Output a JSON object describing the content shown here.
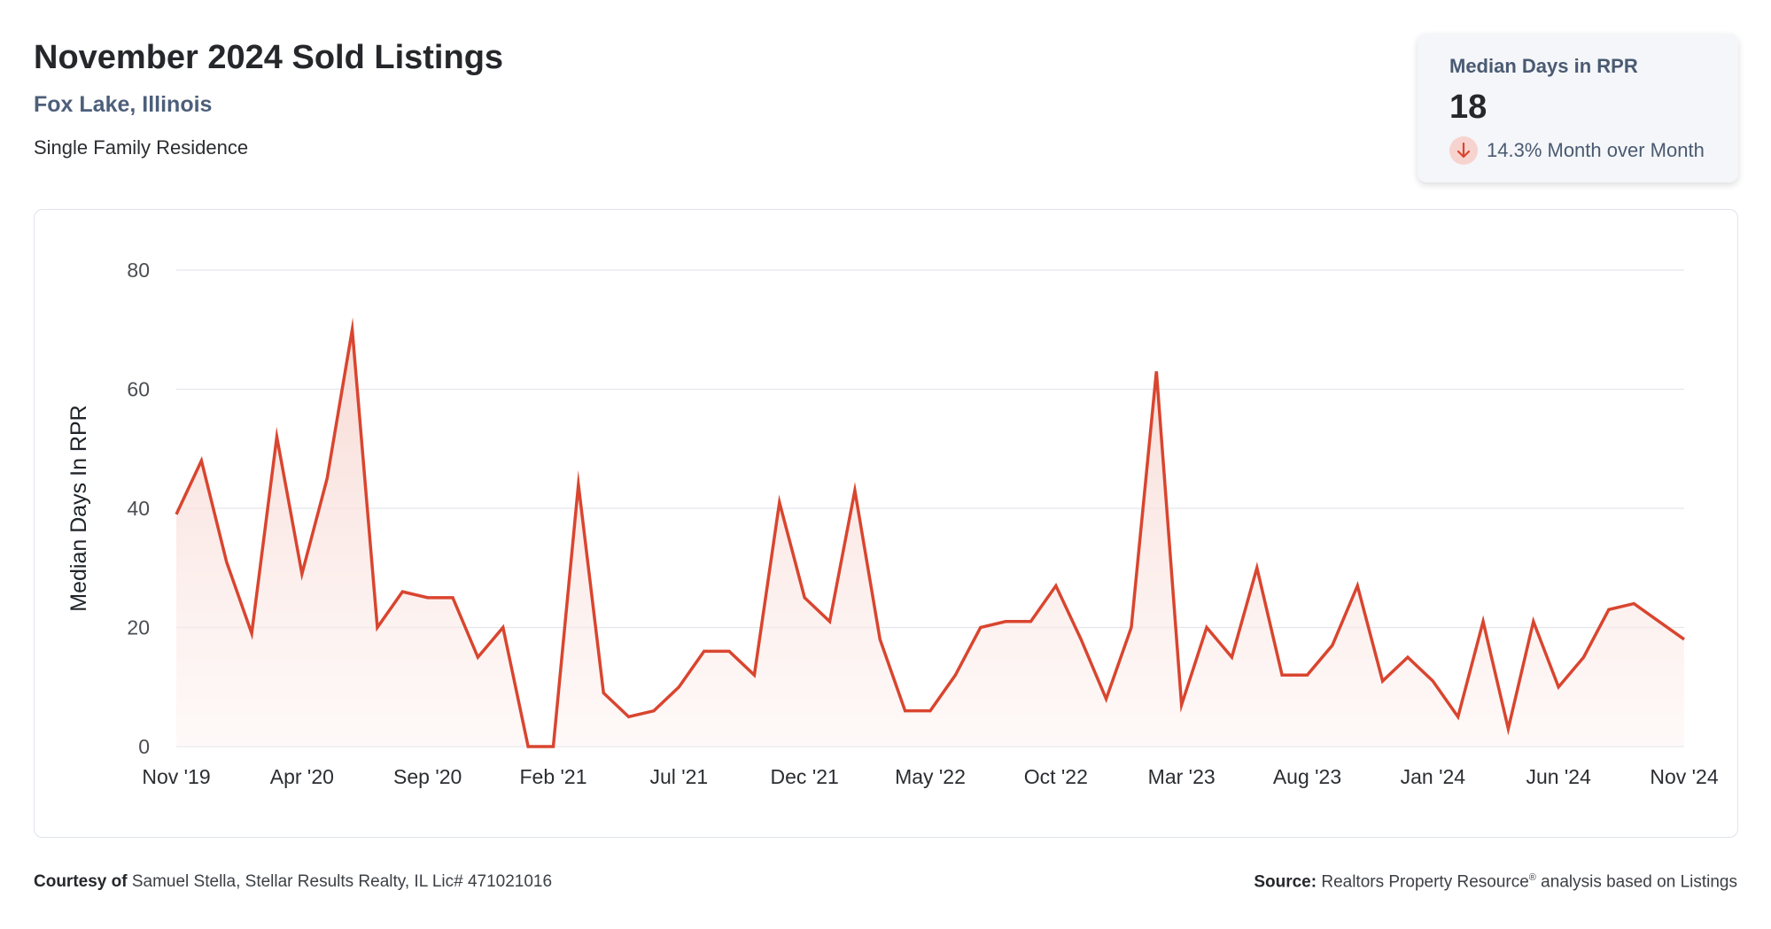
{
  "header": {
    "title": "November 2024 Sold Listings",
    "location": "Fox Lake, Illinois",
    "property_type": "Single Family Residence"
  },
  "kpi": {
    "label": "Median Days in RPR",
    "value": "18",
    "change": "14.3% Month over Month",
    "direction_icon": "arrow-down-icon",
    "direction_color": "#d9452f",
    "direction_bg": "#f7d3cf"
  },
  "footer": {
    "courtesy_label": "Courtesy of",
    "courtesy_text": "Samuel Stella, Stellar Results Realty, IL Lic# 471021016",
    "source_label": "Source:",
    "source_text_1": "Realtors Property Resource",
    "source_reg": "®",
    "source_text_2": " analysis based on Listings"
  },
  "colors": {
    "line": "#d9452f",
    "area_top": "#f6d3cd",
    "grid": "#e3e6ec",
    "axis_text": "#2b2d31"
  },
  "chart_data": {
    "type": "area",
    "ylabel": "Median Days In RPR",
    "xlabel": "",
    "ylim": [
      0,
      80
    ],
    "yticks": [
      0,
      20,
      40,
      60,
      80
    ],
    "grid": true,
    "x_tick_labels": [
      "Nov '19",
      "Apr '20",
      "Sep '20",
      "Feb '21",
      "Jul '21",
      "Dec '21",
      "May '22",
      "Oct '22",
      "Mar '23",
      "Aug '23",
      "Jan '24",
      "Jun '24",
      "Nov '24"
    ],
    "x": [
      "2019-11",
      "2019-12",
      "2020-01",
      "2020-02",
      "2020-03",
      "2020-04",
      "2020-05",
      "2020-06",
      "2020-07",
      "2020-08",
      "2020-09",
      "2020-10",
      "2020-11",
      "2020-12",
      "2021-01",
      "2021-02",
      "2021-03",
      "2021-04",
      "2021-05",
      "2021-06",
      "2021-07",
      "2021-08",
      "2021-09",
      "2021-10",
      "2021-11",
      "2021-12",
      "2022-01",
      "2022-02",
      "2022-03",
      "2022-04",
      "2022-05",
      "2022-06",
      "2022-07",
      "2022-08",
      "2022-09",
      "2022-10",
      "2022-11",
      "2022-12",
      "2023-01",
      "2023-02",
      "2023-03",
      "2023-04",
      "2023-05",
      "2023-06",
      "2023-07",
      "2023-08",
      "2023-09",
      "2023-10",
      "2023-11",
      "2023-12",
      "2024-01",
      "2024-02",
      "2024-03",
      "2024-04",
      "2024-05",
      "2024-06",
      "2024-07",
      "2024-08",
      "2024-09",
      "2024-10",
      "2024-11"
    ],
    "series": [
      {
        "values": [
          39,
          48,
          31,
          19,
          52,
          29,
          45,
          70,
          20,
          26,
          25,
          25,
          15,
          20,
          0,
          0,
          44,
          9,
          5,
          6,
          10,
          16,
          16,
          12,
          41,
          25,
          21,
          43,
          18,
          6,
          6,
          12,
          20,
          21,
          21,
          27,
          18,
          8,
          20,
          63,
          7,
          20,
          15,
          30,
          12,
          12,
          17,
          27,
          11,
          15,
          11,
          5,
          21,
          3,
          21,
          10,
          15,
          23,
          24,
          21,
          18
        ]
      }
    ]
  }
}
